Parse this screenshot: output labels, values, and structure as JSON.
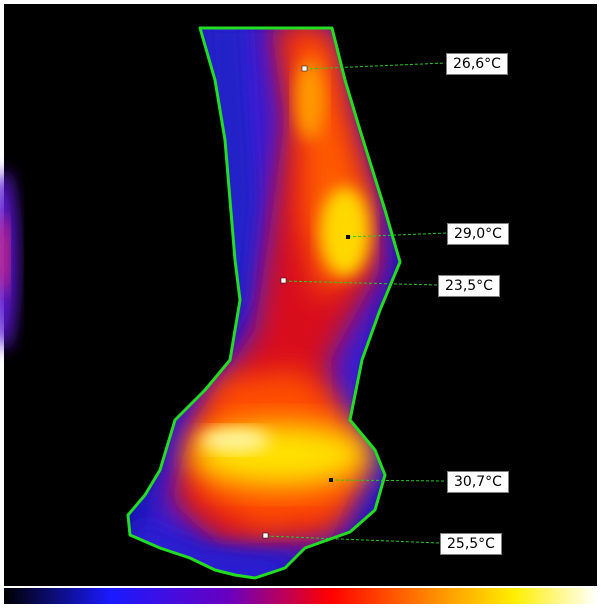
{
  "thermal_image": {
    "measurements": [
      {
        "id": "m1",
        "value": "26,6°C"
      },
      {
        "id": "m2",
        "value": "29,0°C"
      },
      {
        "id": "m3",
        "value": "23,5°C"
      },
      {
        "id": "m4",
        "value": "30,7°C"
      },
      {
        "id": "m5",
        "value": "25,5°C"
      }
    ],
    "colors": {
      "background": "#000000",
      "outline": "#22dd22",
      "leader_line": "#22cc22",
      "label_bg": "#ffffff"
    },
    "palette_bar": [
      "#000000",
      "#1a1aff",
      "#6a00c0",
      "#ff0000",
      "#ff8800",
      "#ffee00",
      "#ffffff"
    ]
  }
}
